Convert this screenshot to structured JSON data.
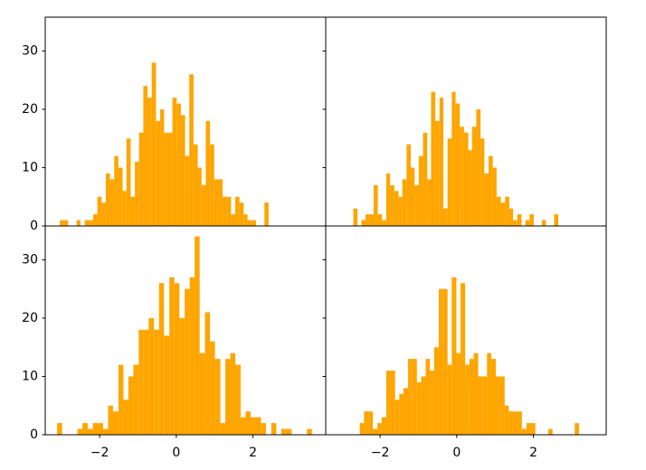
{
  "chart_data": [
    {
      "type": "histogram",
      "color": "#ffa500",
      "xlim": [
        -3.42,
        3.9
      ],
      "ylim": [
        0,
        35.8
      ],
      "yticks": [
        0,
        10,
        20,
        30
      ],
      "bins": [
        -3.04,
        -2.93,
        -2.82,
        -2.71,
        -2.6,
        -2.5,
        -2.39,
        -2.28,
        -2.17,
        -2.06,
        -1.95,
        -1.84,
        -1.73,
        -1.62,
        -1.51,
        -1.4,
        -1.3,
        -1.19,
        -1.08,
        -0.97,
        -0.86,
        -0.75,
        -0.64,
        -0.53,
        -0.42,
        -0.32,
        -0.21,
        -0.1,
        0.01,
        0.12,
        0.23,
        0.34,
        0.45,
        0.56,
        0.66,
        0.77,
        0.88,
        0.99,
        1.1,
        1.21,
        1.32,
        1.43,
        1.54,
        1.65,
        1.76,
        1.86,
        1.97,
        2.08,
        2.19,
        2.3,
        2.41
      ],
      "values": [
        1,
        1,
        0,
        0,
        1,
        0,
        1,
        1,
        2,
        5,
        4,
        9,
        8,
        12,
        10,
        6,
        15,
        5,
        11,
        16,
        24,
        22,
        28,
        18,
        20,
        16,
        16,
        22,
        21,
        19,
        12,
        26,
        14,
        10,
        7,
        18,
        14,
        8,
        8,
        5,
        5,
        2,
        5,
        4,
        2,
        1,
        1,
        0,
        0,
        4
      ]
    },
    {
      "type": "histogram",
      "color": "#ffa500",
      "xlim": [
        -3.42,
        3.9
      ],
      "ylim": [
        0,
        35.8
      ],
      "yticks": [
        0,
        10,
        20,
        30
      ],
      "bins": [
        -2.7,
        -2.59,
        -2.49,
        -2.38,
        -2.27,
        -2.17,
        -2.06,
        -1.95,
        -1.84,
        -1.74,
        -1.63,
        -1.52,
        -1.42,
        -1.31,
        -1.2,
        -1.1,
        -0.99,
        -0.88,
        -0.77,
        -0.67,
        -0.56,
        -0.45,
        -0.35,
        -0.24,
        -0.13,
        -0.03,
        0.08,
        0.19,
        0.3,
        0.4,
        0.51,
        0.62,
        0.72,
        0.83,
        0.94,
        1.04,
        1.15,
        1.26,
        1.37,
        1.47,
        1.58,
        1.69,
        1.79,
        1.9,
        2.01,
        2.11,
        2.22,
        2.33,
        2.44,
        2.54,
        2.65
      ],
      "values": [
        3,
        0,
        1,
        2,
        2,
        7,
        2,
        1,
        9,
        7,
        6,
        5,
        8,
        14,
        10,
        7,
        12,
        16,
        8,
        23,
        18,
        22,
        3,
        15,
        23,
        21,
        17,
        16,
        13,
        17,
        20,
        15,
        9,
        12,
        10,
        5,
        4,
        5,
        3,
        1,
        2,
        0,
        1,
        2,
        0,
        0,
        1,
        0,
        0,
        2
      ]
    },
    {
      "type": "histogram",
      "color": "#ffa500",
      "xlim": [
        -3.42,
        3.9
      ],
      "ylim": [
        0,
        35.8
      ],
      "yticks": [
        0,
        10,
        20,
        30
      ],
      "xticks": [
        {
          "value": -2,
          "label": "−2"
        },
        0,
        2
      ],
      "bins": [
        -3.11,
        -2.98,
        -2.84,
        -2.71,
        -2.58,
        -2.45,
        -2.31,
        -2.18,
        -2.05,
        -1.91,
        -1.78,
        -1.65,
        -1.51,
        -1.38,
        -1.25,
        -1.12,
        -0.98,
        -0.85,
        -0.72,
        -0.58,
        -0.45,
        -0.32,
        -0.18,
        -0.05,
        0.08,
        0.22,
        0.35,
        0.48,
        0.61,
        0.75,
        0.88,
        1.01,
        1.15,
        1.28,
        1.41,
        1.54,
        1.68,
        1.81,
        1.94,
        2.08,
        2.21,
        2.34,
        2.48,
        2.61,
        2.74,
        2.88,
        3.01,
        3.14,
        3.27,
        3.41,
        3.54
      ],
      "values": [
        2,
        0,
        0,
        0,
        1,
        2,
        1,
        2,
        2,
        1,
        5,
        4,
        12,
        6,
        10,
        12,
        18,
        18,
        20,
        18,
        26,
        17,
        27,
        26,
        20,
        25,
        27,
        34,
        14,
        21,
        16,
        13,
        2,
        13,
        14,
        12,
        3,
        4,
        3,
        3,
        2,
        0,
        2,
        0,
        1,
        1,
        0,
        0,
        0,
        1
      ]
    },
    {
      "type": "histogram",
      "color": "#ffa500",
      "xlim": [
        -3.42,
        3.9
      ],
      "ylim": [
        0,
        35.8
      ],
      "yticks": [
        0,
        10,
        20,
        30
      ],
      "xticks": [
        {
          "value": -2,
          "label": "−2"
        },
        0,
        2
      ],
      "bins": [
        -2.53,
        -2.42,
        -2.3,
        -2.19,
        -2.07,
        -1.96,
        -1.84,
        -1.73,
        -1.61,
        -1.5,
        -1.39,
        -1.27,
        -1.16,
        -1.04,
        -0.93,
        -0.81,
        -0.7,
        -0.59,
        -0.47,
        -0.36,
        -0.24,
        -0.13,
        -0.01,
        0.1,
        0.22,
        0.33,
        0.44,
        0.56,
        0.67,
        0.79,
        0.9,
        1.02,
        1.13,
        1.25,
        1.36,
        1.47,
        1.59,
        1.7,
        1.82,
        1.93,
        2.05,
        2.16,
        2.27,
        2.39,
        2.5,
        2.62,
        2.73,
        2.85,
        2.96,
        3.08,
        3.19
      ],
      "values": [
        2,
        4,
        4,
        1,
        2,
        3,
        11,
        11,
        6,
        7,
        8,
        13,
        13,
        9,
        10,
        13,
        11,
        15,
        25,
        25,
        12,
        27,
        14,
        26,
        12,
        13,
        14,
        10,
        10,
        14,
        13,
        10,
        10,
        5,
        4,
        4,
        4,
        1,
        2,
        2,
        0,
        0,
        0,
        1,
        0,
        0,
        0,
        0,
        0,
        2
      ]
    }
  ]
}
